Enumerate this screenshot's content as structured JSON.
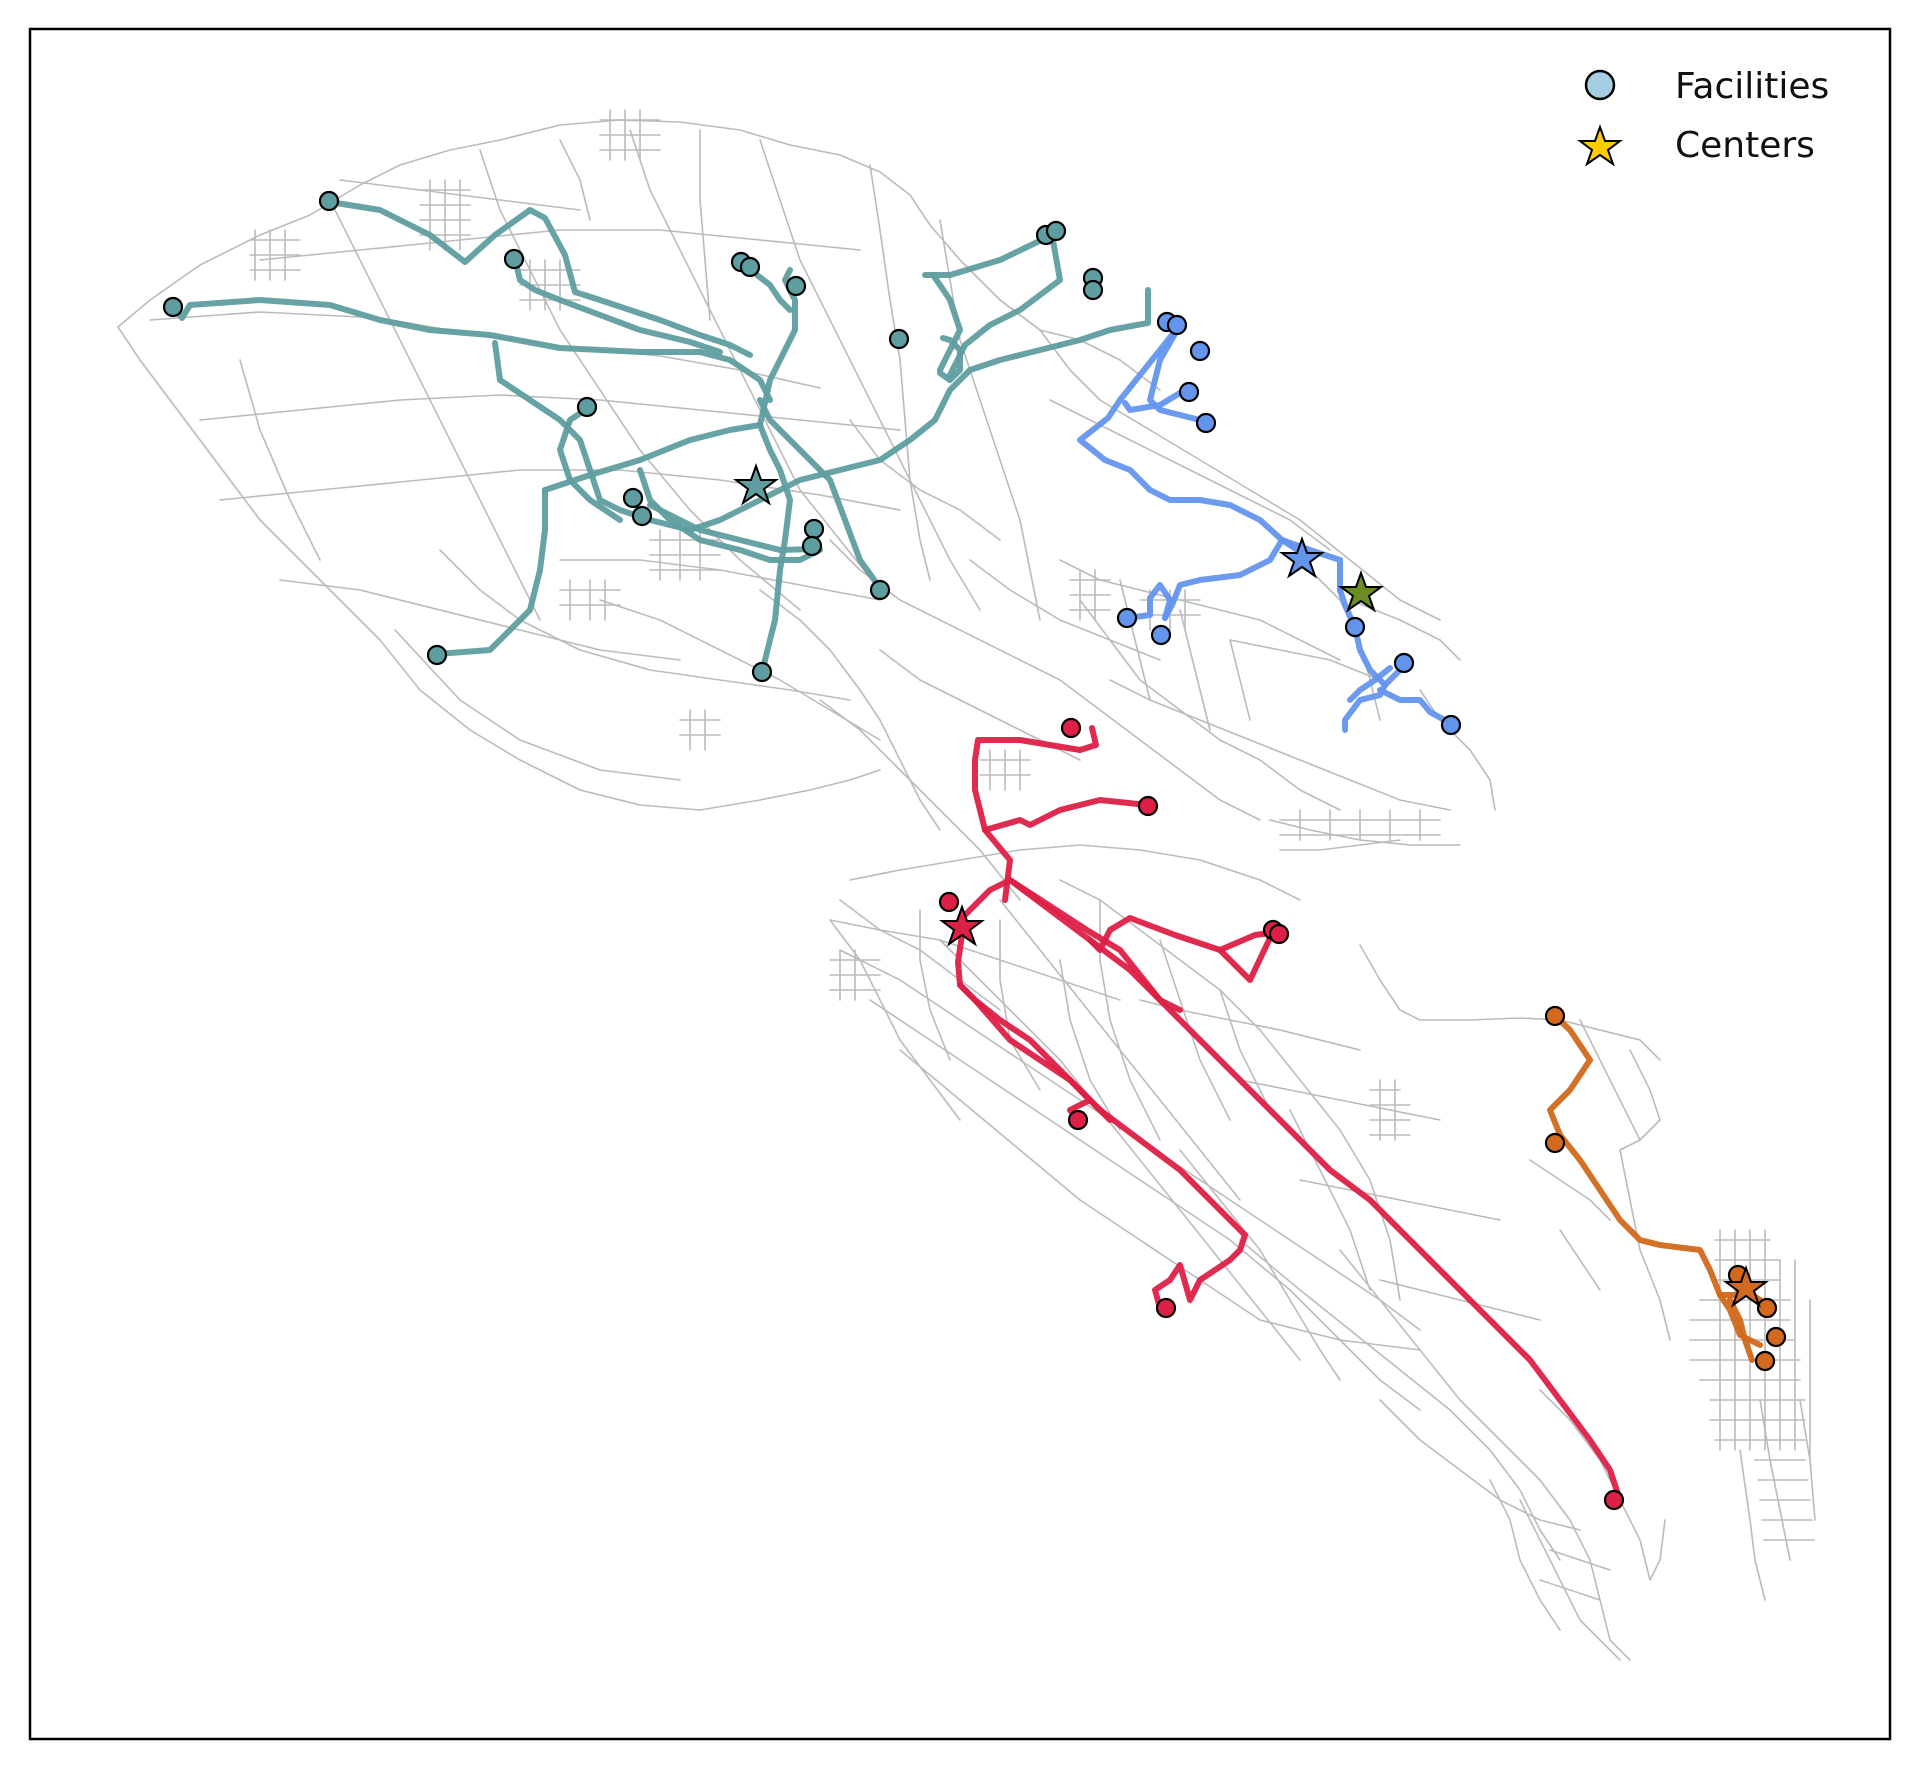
{
  "legend": {
    "facilities_label": "Facilities",
    "centers_label": "Centers",
    "facility_marker_color": "#a6cee3",
    "center_marker_color": "#ffcc00"
  },
  "style": {
    "road_color": "#bbbbbb",
    "marker_edge_color": "#000000"
  },
  "clusters": [
    {
      "name": "teal",
      "color": "#5f9ea0"
    },
    {
      "name": "blue",
      "color": "#6495ed"
    },
    {
      "name": "green",
      "color": "#6b8e23"
    },
    {
      "name": "red",
      "color": "#dc2046"
    },
    {
      "name": "orange",
      "color": "#d2691e"
    }
  ]
}
